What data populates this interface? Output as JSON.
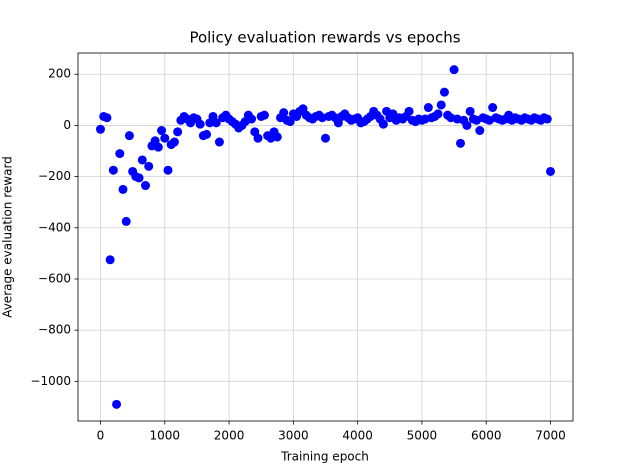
{
  "chart_data": {
    "type": "scatter",
    "title": "Policy evaluation rewards vs epochs",
    "x_label": "Training epoch",
    "y_label": "Average evaluation reward",
    "color": "#0000ff",
    "grid": true,
    "xlim": [
      -350,
      7350
    ],
    "ylim": [
      -1155,
      283
    ],
    "xticks": [
      0,
      1000,
      2000,
      3000,
      4000,
      5000,
      6000,
      7000
    ],
    "yticks": [
      {
        "value": -1000,
        "label": "−1000"
      },
      {
        "value": -800,
        "label": "−800"
      },
      {
        "value": -600,
        "label": "−600"
      },
      {
        "value": -400,
        "label": "−400"
      },
      {
        "value": -200,
        "label": "−200"
      },
      0,
      200
    ],
    "x": [
      0,
      50,
      100,
      150,
      200,
      250,
      300,
      350,
      400,
      450,
      500,
      550,
      600,
      650,
      700,
      750,
      800,
      850,
      900,
      950,
      1000,
      1050,
      1100,
      1150,
      1200,
      1250,
      1300,
      1350,
      1400,
      1450,
      1500,
      1550,
      1600,
      1650,
      1700,
      1750,
      1800,
      1850,
      1900,
      1950,
      2000,
      2050,
      2100,
      2150,
      2200,
      2250,
      2300,
      2350,
      2400,
      2450,
      2500,
      2550,
      2600,
      2650,
      2700,
      2750,
      2800,
      2850,
      2900,
      2950,
      3000,
      3050,
      3100,
      3150,
      3200,
      3250,
      3300,
      3350,
      3400,
      3450,
      3500,
      3550,
      3600,
      3650,
      3700,
      3750,
      3800,
      3850,
      3900,
      3950,
      4000,
      4050,
      4100,
      4150,
      4200,
      4250,
      4300,
      4350,
      4400,
      4450,
      4500,
      4550,
      4600,
      4650,
      4700,
      4750,
      4800,
      4850,
      4900,
      4950,
      5000,
      5050,
      5100,
      5150,
      5200,
      5250,
      5300,
      5350,
      5400,
      5450,
      5500,
      5550,
      5600,
      5650,
      5700,
      5750,
      5800,
      5850,
      5900,
      5950,
      6000,
      6050,
      6100,
      6150,
      6200,
      6250,
      6300,
      6350,
      6400,
      6450,
      6500,
      6550,
      6600,
      6650,
      6700,
      6750,
      6800,
      6850,
      6900,
      6950,
      7000
    ],
    "values": [
      -15,
      35,
      30,
      -525,
      -175,
      -1090,
      -110,
      -250,
      -375,
      -40,
      -180,
      -200,
      -205,
      -135,
      -235,
      -160,
      -80,
      -60,
      -85,
      -20,
      -50,
      -175,
      -75,
      -65,
      -25,
      20,
      35,
      25,
      10,
      30,
      25,
      5,
      -40,
      -35,
      10,
      35,
      10,
      -65,
      30,
      40,
      25,
      15,
      5,
      -10,
      0,
      15,
      40,
      25,
      -25,
      -50,
      35,
      40,
      -40,
      -50,
      -25,
      -45,
      30,
      50,
      20,
      15,
      45,
      35,
      55,
      65,
      40,
      30,
      25,
      35,
      40,
      30,
      -50,
      35,
      40,
      30,
      10,
      35,
      45,
      30,
      20,
      25,
      30,
      10,
      15,
      25,
      35,
      55,
      40,
      25,
      5,
      55,
      30,
      45,
      20,
      30,
      25,
      35,
      55,
      20,
      15,
      25,
      20,
      25,
      70,
      30,
      35,
      45,
      80,
      130,
      40,
      30,
      218,
      25,
      -70,
      20,
      0,
      55,
      25,
      20,
      -20,
      30,
      25,
      20,
      70,
      30,
      25,
      20,
      25,
      40,
      20,
      30,
      25,
      20,
      30,
      25,
      20,
      30,
      25,
      20,
      30,
      25,
      -180
    ]
  }
}
